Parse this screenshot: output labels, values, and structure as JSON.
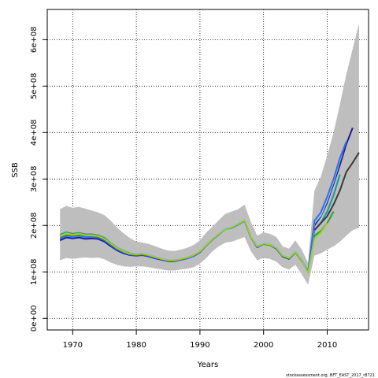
{
  "chart_data": {
    "type": "line",
    "xlabel": "Years",
    "ylabel": "SSB",
    "xlim": [
      1966,
      2016.5
    ],
    "ylim": [
      -25000000.0,
      665000000.0
    ],
    "x_ticks": [
      1970,
      1980,
      1990,
      2000,
      2010
    ],
    "x_tick_labels": [
      "1970",
      "1980",
      "1990",
      "2000",
      "2010"
    ],
    "y_ticks": [
      0,
      100000000,
      200000000,
      300000000,
      400000000,
      500000000,
      600000000
    ],
    "y_tick_labels": [
      "0e+00",
      "1e+08",
      "2e+08",
      "3e+08",
      "4e+08",
      "5e+08",
      "6e+08"
    ],
    "grid": true,
    "caption": "stockassessment.org, BFT_EAST_2017_r8721",
    "colors": {
      "band": "#bebebe",
      "base": "#3a3a3a",
      "retro": [
        "#1f1f8a",
        "#2ca02c",
        "#1a9a9a",
        "#87ceeb",
        "#4169e1",
        "#9acd32"
      ]
    },
    "band": {
      "x": [
        1968,
        1969,
        1970,
        1971,
        1972,
        1973,
        1974,
        1975,
        1976,
        1977,
        1978,
        1979,
        1980,
        1981,
        1982,
        1983,
        1984,
        1985,
        1986,
        1987,
        1988,
        1989,
        1990,
        1991,
        1992,
        1993,
        1994,
        1995,
        1996,
        1997,
        1998,
        1999,
        2000,
        2001,
        2002,
        2003,
        2004,
        2005,
        2006,
        2007,
        2008,
        2009,
        2010,
        2011,
        2012,
        2013,
        2014,
        2015
      ],
      "lower": [
        125000000,
        130000000,
        128000000,
        130000000,
        131000000,
        130000000,
        131000000,
        127000000,
        120000000,
        115000000,
        112000000,
        111000000,
        112000000,
        112000000,
        110000000,
        107000000,
        105000000,
        103000000,
        103000000,
        105000000,
        107000000,
        110000000,
        118000000,
        130000000,
        145000000,
        155000000,
        163000000,
        165000000,
        170000000,
        175000000,
        145000000,
        125000000,
        130000000,
        128000000,
        122000000,
        110000000,
        105000000,
        115000000,
        95000000,
        72000000,
        135000000,
        140000000,
        148000000,
        155000000,
        165000000,
        178000000,
        190000000,
        195000000
      ],
      "upper": [
        235000000,
        242000000,
        238000000,
        240000000,
        236000000,
        232000000,
        228000000,
        222000000,
        210000000,
        195000000,
        183000000,
        173000000,
        165000000,
        163000000,
        160000000,
        155000000,
        150000000,
        146000000,
        145000000,
        148000000,
        152000000,
        158000000,
        168000000,
        185000000,
        198000000,
        212000000,
        225000000,
        230000000,
        235000000,
        245000000,
        208000000,
        178000000,
        185000000,
        182000000,
        175000000,
        155000000,
        150000000,
        168000000,
        148000000,
        120000000,
        275000000,
        305000000,
        350000000,
        400000000,
        460000000,
        525000000,
        580000000,
        635000000
      ]
    },
    "series": [
      {
        "color": "#1f1f8a",
        "x": [
          1968,
          1969,
          1970,
          1971,
          1972,
          1973,
          1974,
          1975,
          1976,
          1977,
          1978,
          1979,
          1980,
          1981,
          1982,
          1983,
          1984,
          1985,
          1986,
          1987,
          1988,
          1989,
          1990,
          1991,
          1992,
          1993,
          1994,
          1995,
          1996,
          1997,
          1998,
          1999,
          2000,
          2001,
          2002,
          2003,
          2004,
          2005,
          2006,
          2007,
          2008,
          2009,
          2010,
          2011,
          2012,
          2013,
          2014
        ],
        "y": [
          168000000,
          174000000,
          172000000,
          174000000,
          171000000,
          172000000,
          171000000,
          165000000,
          155000000,
          146000000,
          140000000,
          136000000,
          135000000,
          136000000,
          133000000,
          129000000,
          126000000,
          123000000,
          123000000,
          126000000,
          129000000,
          134000000,
          142000000,
          157000000,
          170000000,
          181000000,
          192000000,
          195000000,
          202000000,
          210000000,
          175000000,
          153000000,
          160000000,
          158000000,
          150000000,
          133000000,
          128000000,
          142000000,
          124000000,
          100000000,
          200000000,
          220000000,
          250000000,
          290000000,
          330000000,
          375000000,
          410000000
        ]
      },
      {
        "color": "#2ca02c",
        "x": [
          1968,
          1969,
          1970,
          1971,
          1972,
          1973,
          1974,
          1975,
          1976,
          1977,
          1978,
          1979,
          1980,
          1981,
          1982,
          1983,
          1984,
          1985,
          1986,
          1987,
          1988,
          1989,
          1990,
          1991,
          1992,
          1993,
          1994,
          1995,
          1996,
          1997,
          1998,
          1999,
          2000,
          2001,
          2002,
          2003,
          2004,
          2005,
          2006,
          2007,
          2008,
          2009,
          2010,
          2011
        ],
        "y": [
          180000000,
          185000000,
          182000000,
          184000000,
          181000000,
          181000000,
          179000000,
          173000000,
          162000000,
          152000000,
          145000000,
          140000000,
          138000000,
          139000000,
          136000000,
          132000000,
          128000000,
          125000000,
          125000000,
          127000000,
          130000000,
          135000000,
          143000000,
          158000000,
          171000000,
          182000000,
          192000000,
          196000000,
          202000000,
          211000000,
          176000000,
          154000000,
          160000000,
          158000000,
          151000000,
          134000000,
          129000000,
          142000000,
          125000000,
          102000000,
          178000000,
          188000000,
          205000000,
          230000000
        ]
      },
      {
        "color": "#1a9a9a",
        "x": [
          1968,
          1969,
          1970,
          1971,
          1972,
          1973,
          1974,
          1975,
          1976,
          1977,
          1978,
          1979,
          1980,
          1981,
          1982,
          1983,
          1984,
          1985,
          1986,
          1987,
          1988,
          1989,
          1990,
          1991,
          1992,
          1993,
          1994,
          1995,
          1996,
          1997,
          1998,
          1999,
          2000,
          2001,
          2002,
          2003,
          2004,
          2005,
          2006,
          2007,
          2008,
          2009,
          2010,
          2011,
          2012
        ],
        "y": [
          176000000,
          181000000,
          179000000,
          181000000,
          178000000,
          178000000,
          176000000,
          170000000,
          160000000,
          150000000,
          143000000,
          138000000,
          137000000,
          138000000,
          135000000,
          131000000,
          127000000,
          124000000,
          124000000,
          127000000,
          130000000,
          135000000,
          143000000,
          158000000,
          171000000,
          182000000,
          193000000,
          196000000,
          203000000,
          211000000,
          176000000,
          155000000,
          161000000,
          159000000,
          152000000,
          135000000,
          130000000,
          144000000,
          126000000,
          103000000,
          190000000,
          205000000,
          230000000,
          265000000,
          310000000
        ]
      },
      {
        "color": "#87ceeb",
        "x": [
          1968,
          1969,
          1970,
          1971,
          1972,
          1973,
          1974,
          1975,
          1976,
          1977,
          1978,
          1979,
          1980,
          1981,
          1982,
          1983,
          1984,
          1985,
          1986,
          1987,
          1988,
          1989,
          1990,
          1991,
          1992,
          1993,
          1994,
          1995,
          1996,
          1997,
          1998,
          1999,
          2000,
          2001,
          2002,
          2003,
          2004,
          2005,
          2006,
          2007,
          2008,
          2009,
          2010,
          2011,
          2012,
          2013
        ],
        "y": [
          178000000,
          183000000,
          180000000,
          182000000,
          179000000,
          179000000,
          177000000,
          171000000,
          161000000,
          151000000,
          144000000,
          139000000,
          138000000,
          139000000,
          136000000,
          132000000,
          128000000,
          125000000,
          125000000,
          128000000,
          131000000,
          136000000,
          144000000,
          159000000,
          172000000,
          183000000,
          194000000,
          197000000,
          204000000,
          212000000,
          177000000,
          156000000,
          162000000,
          160000000,
          153000000,
          136000000,
          131000000,
          145000000,
          127000000,
          104000000,
          205000000,
          222000000,
          255000000,
          295000000,
          340000000,
          385000000
        ]
      },
      {
        "color": "#4169e1",
        "x": [
          1968,
          1969,
          1970,
          1971,
          1972,
          1973,
          1974,
          1975,
          1976,
          1977,
          1978,
          1979,
          1980,
          1981,
          1982,
          1983,
          1984,
          1985,
          1986,
          1987,
          1988,
          1989,
          1990,
          1991,
          1992,
          1993,
          1994,
          1995,
          1996,
          1997,
          1998,
          1999,
          2000,
          2001,
          2002,
          2003,
          2004,
          2005,
          2006,
          2007,
          2008,
          2009,
          2010,
          2011,
          2012,
          2013
        ],
        "y": [
          172000000,
          178000000,
          176000000,
          178000000,
          175000000,
          175000000,
          174000000,
          168000000,
          158000000,
          148000000,
          142000000,
          137000000,
          136000000,
          137000000,
          134000000,
          130000000,
          127000000,
          124000000,
          124000000,
          126000000,
          129000000,
          134000000,
          142000000,
          157000000,
          170000000,
          181000000,
          192000000,
          195000000,
          202000000,
          210000000,
          175000000,
          154000000,
          160000000,
          158000000,
          151000000,
          134000000,
          129000000,
          143000000,
          125000000,
          101000000,
          210000000,
          228000000,
          262000000,
          300000000,
          345000000,
          380000000
        ]
      },
      {
        "color": "#9acd32",
        "x": [
          1968,
          1969,
          1970,
          1971,
          1972,
          1973,
          1974,
          1975,
          1976,
          1977,
          1978,
          1979,
          1980,
          1981,
          1982,
          1983,
          1984,
          1985,
          1986,
          1987,
          1988,
          1989,
          1990,
          1991,
          1992,
          1993,
          1994,
          1995,
          1996,
          1997,
          1998,
          1999,
          2000,
          2001,
          2002,
          2003,
          2004,
          2005,
          2006,
          2007,
          2008,
          2009,
          2010
        ],
        "y": [
          177000000,
          182000000,
          180000000,
          182000000,
          179000000,
          179000000,
          177000000,
          171000000,
          161000000,
          151000000,
          144000000,
          139000000,
          138000000,
          139000000,
          136000000,
          132000000,
          128000000,
          125000000,
          125000000,
          128000000,
          131000000,
          136000000,
          144000000,
          158000000,
          171000000,
          182000000,
          192000000,
          196000000,
          203000000,
          211000000,
          176000000,
          155000000,
          161000000,
          159000000,
          152000000,
          135000000,
          130000000,
          143000000,
          125000000,
          98000000,
          172000000,
          185000000,
          205000000
        ]
      },
      {
        "color": "#3a3a3a",
        "x": [
          2008,
          2009,
          2010,
          2011,
          2012,
          2013,
          2014,
          2015
        ],
        "y": [
          190000000,
          205000000,
          220000000,
          245000000,
          275000000,
          315000000,
          335000000,
          357000000
        ]
      }
    ]
  }
}
